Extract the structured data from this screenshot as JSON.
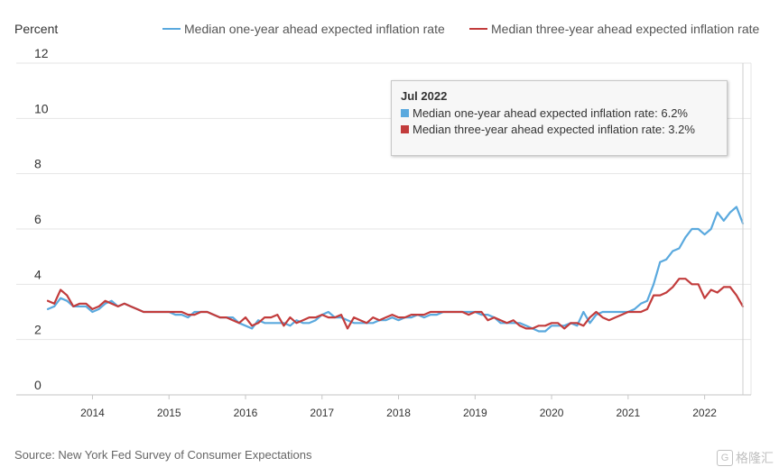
{
  "chart_data": {
    "type": "line",
    "ylabel": "Percent",
    "ylim": [
      0,
      12
    ],
    "yticks": [
      "0",
      "2",
      "4",
      "6",
      "8",
      "10",
      "12"
    ],
    "xticks": [
      "2014",
      "2015",
      "2016",
      "2017",
      "2018",
      "2019",
      "2020",
      "2021",
      "2022"
    ],
    "x_start": "2013-06",
    "x_end": "2022-07",
    "grid": true,
    "legend_placement": "top",
    "series": [
      {
        "name": "Median one-year ahead expected inflation rate",
        "color": "#5aa9de",
        "values": [
          3.1,
          3.2,
          3.5,
          3.4,
          3.2,
          3.2,
          3.2,
          3.0,
          3.1,
          3.3,
          3.4,
          3.2,
          3.3,
          3.2,
          3.1,
          3.0,
          3.0,
          3.0,
          3.0,
          3.0,
          2.9,
          2.9,
          2.8,
          3.0,
          3.0,
          3.0,
          2.9,
          2.8,
          2.8,
          2.8,
          2.6,
          2.5,
          2.4,
          2.7,
          2.6,
          2.6,
          2.6,
          2.6,
          2.5,
          2.7,
          2.6,
          2.6,
          2.7,
          2.9,
          3.0,
          2.8,
          2.8,
          2.7,
          2.6,
          2.6,
          2.6,
          2.6,
          2.7,
          2.7,
          2.8,
          2.7,
          2.8,
          2.8,
          2.9,
          2.8,
          2.9,
          2.9,
          3.0,
          3.0,
          3.0,
          3.0,
          3.0,
          3.0,
          2.9,
          2.9,
          2.8,
          2.6,
          2.6,
          2.6,
          2.6,
          2.5,
          2.4,
          2.3,
          2.3,
          2.5,
          2.5,
          2.5,
          2.6,
          2.5,
          3.0,
          2.6,
          2.9,
          3.0,
          3.0,
          3.0,
          3.0,
          3.0,
          3.1,
          3.3,
          3.4,
          4.0,
          4.8,
          4.9,
          5.2,
          5.3,
          5.7,
          6.0,
          6.0,
          5.8,
          6.0,
          6.6,
          6.3,
          6.6,
          6.8,
          6.2
        ]
      },
      {
        "name": "Median three-year ahead expected inflation rate",
        "color": "#c23c3c",
        "values": [
          3.4,
          3.3,
          3.8,
          3.6,
          3.2,
          3.3,
          3.3,
          3.1,
          3.2,
          3.4,
          3.3,
          3.2,
          3.3,
          3.2,
          3.1,
          3.0,
          3.0,
          3.0,
          3.0,
          3.0,
          3.0,
          3.0,
          2.9,
          2.9,
          3.0,
          3.0,
          2.9,
          2.8,
          2.8,
          2.7,
          2.6,
          2.8,
          2.5,
          2.6,
          2.8,
          2.8,
          2.9,
          2.5,
          2.8,
          2.6,
          2.7,
          2.8,
          2.8,
          2.9,
          2.8,
          2.8,
          2.9,
          2.4,
          2.8,
          2.7,
          2.6,
          2.8,
          2.7,
          2.8,
          2.9,
          2.8,
          2.8,
          2.9,
          2.9,
          2.9,
          3.0,
          3.0,
          3.0,
          3.0,
          3.0,
          3.0,
          2.9,
          3.0,
          3.0,
          2.7,
          2.8,
          2.7,
          2.6,
          2.7,
          2.5,
          2.4,
          2.4,
          2.5,
          2.5,
          2.6,
          2.6,
          2.4,
          2.6,
          2.6,
          2.5,
          2.8,
          3.0,
          2.8,
          2.7,
          2.8,
          2.9,
          3.0,
          3.0,
          3.0,
          3.1,
          3.6,
          3.6,
          3.7,
          3.9,
          4.2,
          4.2,
          4.0,
          4.0,
          3.5,
          3.8,
          3.7,
          3.9,
          3.9,
          3.6,
          3.2
        ]
      }
    ]
  },
  "tooltip": {
    "title": "Jul 2022",
    "line1": "Median one-year ahead expected inflation rate: 6.2%",
    "line2": "Median three-year ahead expected inflation rate: 3.2%"
  },
  "source": "Source: New York Fed Survey of Consumer Expectations",
  "watermark": "格隆汇"
}
